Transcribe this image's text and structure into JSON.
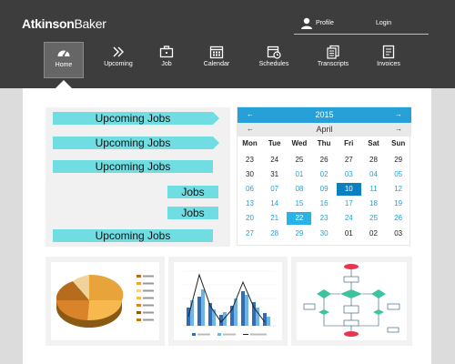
{
  "brand": {
    "name_bold": "Atkinson",
    "name_thin": "Baker"
  },
  "account": {
    "profile_label": "Profile",
    "login_label": "Login"
  },
  "nav": {
    "items": [
      {
        "label": "Home",
        "icon": "dashboard-icon"
      },
      {
        "label": "Upcoming",
        "icon": "double-chevron-icon"
      },
      {
        "label": "Job",
        "icon": "briefcase-icon"
      },
      {
        "label": "Calendar",
        "icon": "calendar-icon"
      },
      {
        "label": "Schedules",
        "icon": "schedule-icon"
      },
      {
        "label": "Transcripts",
        "icon": "documents-icon"
      },
      {
        "label": "Invoices",
        "icon": "invoice-icon"
      }
    ],
    "active": "Home"
  },
  "jobs": {
    "tags": [
      "Upcoming Jobs",
      "Upcoming Jobs",
      "Upcoming Jobs",
      "Jobs",
      "Jobs",
      "Upcoming Jobs"
    ]
  },
  "calendar": {
    "year": "2015",
    "month": "April",
    "prev_arrow": "←",
    "next_arrow": "→",
    "weekdays": [
      "Mon",
      "Tue",
      "Wed",
      "Thu",
      "Fri",
      "Sat",
      "Sun"
    ],
    "weeks": [
      [
        "23",
        "24",
        "25",
        "26",
        "27",
        "28",
        "29"
      ],
      [
        "30",
        "31",
        "01",
        "02",
        "03",
        "04",
        "05"
      ],
      [
        "06",
        "07",
        "08",
        "09",
        "10",
        "11",
        "12"
      ],
      [
        "13",
        "14",
        "15",
        "16",
        "17",
        "18",
        "19"
      ],
      [
        "20",
        "21",
        "22",
        "23",
        "24",
        "25",
        "26"
      ],
      [
        "27",
        "28",
        "29",
        "30",
        "01",
        "02",
        "03"
      ]
    ],
    "selected_day": "10",
    "today": "22",
    "colors": {
      "header": "#27a0d8",
      "current_month": "#27a0d8",
      "selected": "#0c7fc1"
    }
  },
  "thumbnails": [
    {
      "kind": "pie-chart-thumbnail"
    },
    {
      "kind": "bar-line-chart-thumbnail"
    },
    {
      "kind": "flowchart-thumbnail"
    }
  ],
  "colors": {
    "topbar": "#3d3d3d",
    "accent": "#6fdde2",
    "background": "#dcdcdc"
  }
}
